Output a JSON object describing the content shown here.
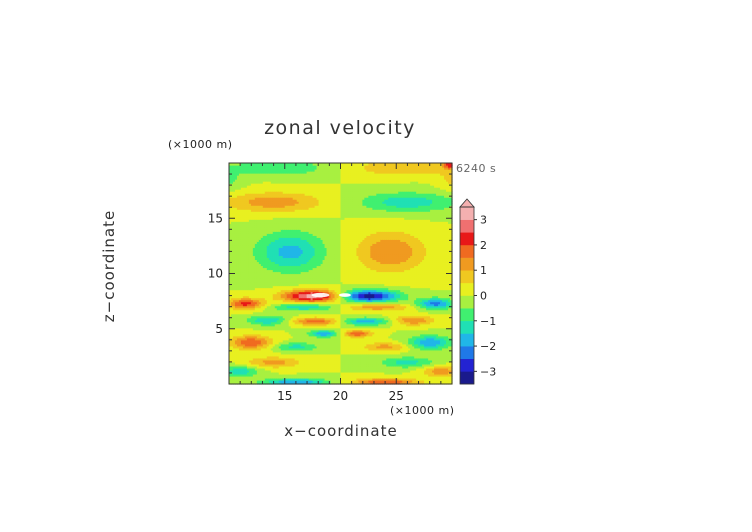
{
  "chart_data": {
    "type": "heatmap",
    "title": "zonal velocity",
    "xlabel": "x−coordinate",
    "ylabel": "z−coordinate",
    "x_unit": "(×1000 m)",
    "y_unit": "(×1000 m)",
    "time_label": "6240 s",
    "xlim": [
      10,
      30
    ],
    "ylim": [
      0,
      20
    ],
    "x_ticks": [
      15,
      20,
      25
    ],
    "y_ticks": [
      5,
      10,
      15
    ],
    "colorbar": {
      "ticks": [
        3,
        2,
        1,
        0,
        -1,
        -2,
        -3
      ],
      "min": -3.5,
      "max": 3.5,
      "step": 0.5,
      "colors": [
        "#1a1a8c",
        "#2323d2",
        "#1f78e8",
        "#20b6e8",
        "#20e0b4",
        "#40f070",
        "#a8f040",
        "#e8f020",
        "#f0c820",
        "#f09a20",
        "#f06a20",
        "#e81818",
        "#f07070",
        "#f4b0b0"
      ],
      "extend_top": true,
      "legend_placement": "right"
    },
    "blobs": [
      {
        "x": 17.5,
        "z": 8.0,
        "rx": 2.6,
        "rz": 0.55,
        "v": 3.3
      },
      {
        "x": 22.5,
        "z": 8.0,
        "rx": 2.6,
        "rz": 0.55,
        "v": -3.3
      },
      {
        "x": 16.8,
        "z": 7.0,
        "rx": 3.0,
        "rz": 0.35,
        "v": -1.4
      },
      {
        "x": 23.2,
        "z": 7.0,
        "rx": 3.0,
        "rz": 0.35,
        "v": 1.4
      },
      {
        "x": 11.5,
        "z": 7.3,
        "rx": 1.6,
        "rz": 0.5,
        "v": 2.2
      },
      {
        "x": 28.5,
        "z": 7.3,
        "rx": 1.6,
        "rz": 0.5,
        "v": -2.2
      },
      {
        "x": 17.8,
        "z": 5.7,
        "rx": 2.2,
        "rz": 0.35,
        "v": 1.8
      },
      {
        "x": 22.2,
        "z": 5.7,
        "rx": 2.2,
        "rz": 0.35,
        "v": -1.8
      },
      {
        "x": 13.5,
        "z": 5.8,
        "rx": 1.8,
        "rz": 0.45,
        "v": -1.5
      },
      {
        "x": 26.5,
        "z": 5.8,
        "rx": 1.8,
        "rz": 0.45,
        "v": 1.5
      },
      {
        "x": 18.5,
        "z": 4.6,
        "rx": 1.3,
        "rz": 0.3,
        "v": -2.0
      },
      {
        "x": 21.5,
        "z": 4.6,
        "rx": 1.3,
        "rz": 0.3,
        "v": 2.0
      },
      {
        "x": 12.0,
        "z": 3.8,
        "rx": 1.8,
        "rz": 0.6,
        "v": 2.0
      },
      {
        "x": 28.0,
        "z": 3.8,
        "rx": 1.8,
        "rz": 0.6,
        "v": -2.0
      },
      {
        "x": 16.0,
        "z": 3.4,
        "rx": 2.0,
        "rz": 0.4,
        "v": -1.2
      },
      {
        "x": 24.0,
        "z": 3.4,
        "rx": 2.0,
        "rz": 0.4,
        "v": 1.2
      },
      {
        "x": 14.0,
        "z": 2.0,
        "rx": 2.5,
        "rz": 0.5,
        "v": 1.2
      },
      {
        "x": 26.0,
        "z": 2.0,
        "rx": 2.5,
        "rz": 0.5,
        "v": -1.2
      },
      {
        "x": 11.0,
        "z": 1.2,
        "rx": 1.6,
        "rz": 0.5,
        "v": -1.4
      },
      {
        "x": 29.0,
        "z": 1.2,
        "rx": 1.6,
        "rz": 0.5,
        "v": 1.4
      },
      {
        "x": 16.0,
        "z": 0.2,
        "rx": 3.0,
        "rz": 0.35,
        "v": -2.0
      },
      {
        "x": 24.0,
        "z": 0.2,
        "rx": 3.0,
        "rz": 0.35,
        "v": 2.0
      },
      {
        "x": 15.5,
        "z": 12.0,
        "rx": 3.0,
        "rz": 1.8,
        "v": -1.7
      },
      {
        "x": 24.5,
        "z": 12.0,
        "rx": 3.0,
        "rz": 1.8,
        "v": 1.5
      },
      {
        "x": 14.0,
        "z": 16.5,
        "rx": 4.5,
        "rz": 0.9,
        "v": 1.3
      },
      {
        "x": 26.0,
        "z": 16.5,
        "rx": 4.5,
        "rz": 0.9,
        "v": -1.3
      },
      {
        "x": 14.5,
        "z": 19.6,
        "rx": 4.5,
        "rz": 0.7,
        "v": -1.0
      },
      {
        "x": 25.5,
        "z": 19.6,
        "rx": 4.5,
        "rz": 0.7,
        "v": 1.0
      },
      {
        "x": 29.8,
        "z": 19.9,
        "rx": 0.6,
        "rz": 0.4,
        "v": 2.0
      },
      {
        "x": 10.0,
        "z": 18.5,
        "rx": 1.2,
        "rz": 1.0,
        "v": -0.6
      },
      {
        "x": 30.0,
        "z": 18.5,
        "rx": 1.2,
        "rz": 1.0,
        "v": 0.6
      }
    ]
  }
}
